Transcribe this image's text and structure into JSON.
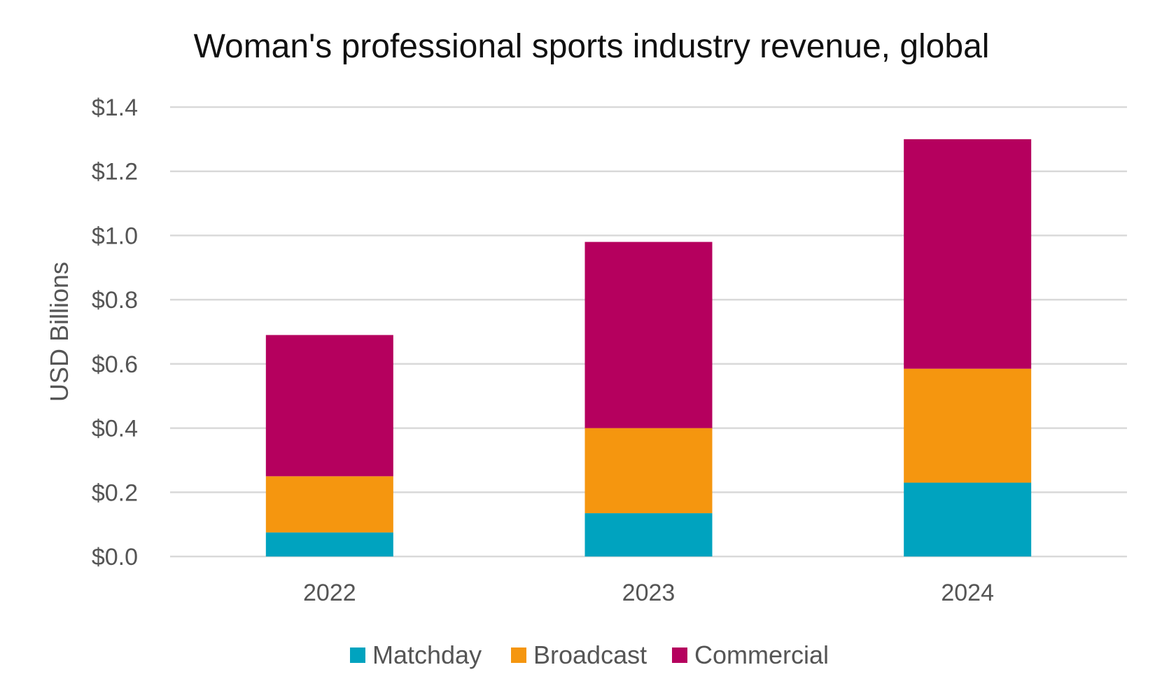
{
  "chart_data": {
    "type": "bar",
    "stacked": true,
    "title": "Woman's professional sports industry revenue, global",
    "xlabel": "",
    "ylabel": "USD Billions",
    "ylim": [
      0,
      1.4
    ],
    "y_ticks": [
      0,
      0.2,
      0.4,
      0.6,
      0.8,
      1.0,
      1.2,
      1.4
    ],
    "y_tick_labels": [
      "$0.0",
      "$0.2",
      "$0.4",
      "$0.6",
      "$0.8",
      "$1.0",
      "$1.2",
      "$1.4"
    ],
    "grid": true,
    "legend_position": "bottom",
    "categories": [
      "2022",
      "2023",
      "2024"
    ],
    "series": [
      {
        "name": "Matchday",
        "color": "#00a3bf",
        "values": [
          0.075,
          0.135,
          0.23
        ]
      },
      {
        "name": "Broadcast",
        "color": "#f5960f",
        "values": [
          0.175,
          0.265,
          0.355
        ]
      },
      {
        "name": "Commercial",
        "color": "#b5005e",
        "values": [
          0.44,
          0.58,
          0.715
        ]
      }
    ]
  }
}
